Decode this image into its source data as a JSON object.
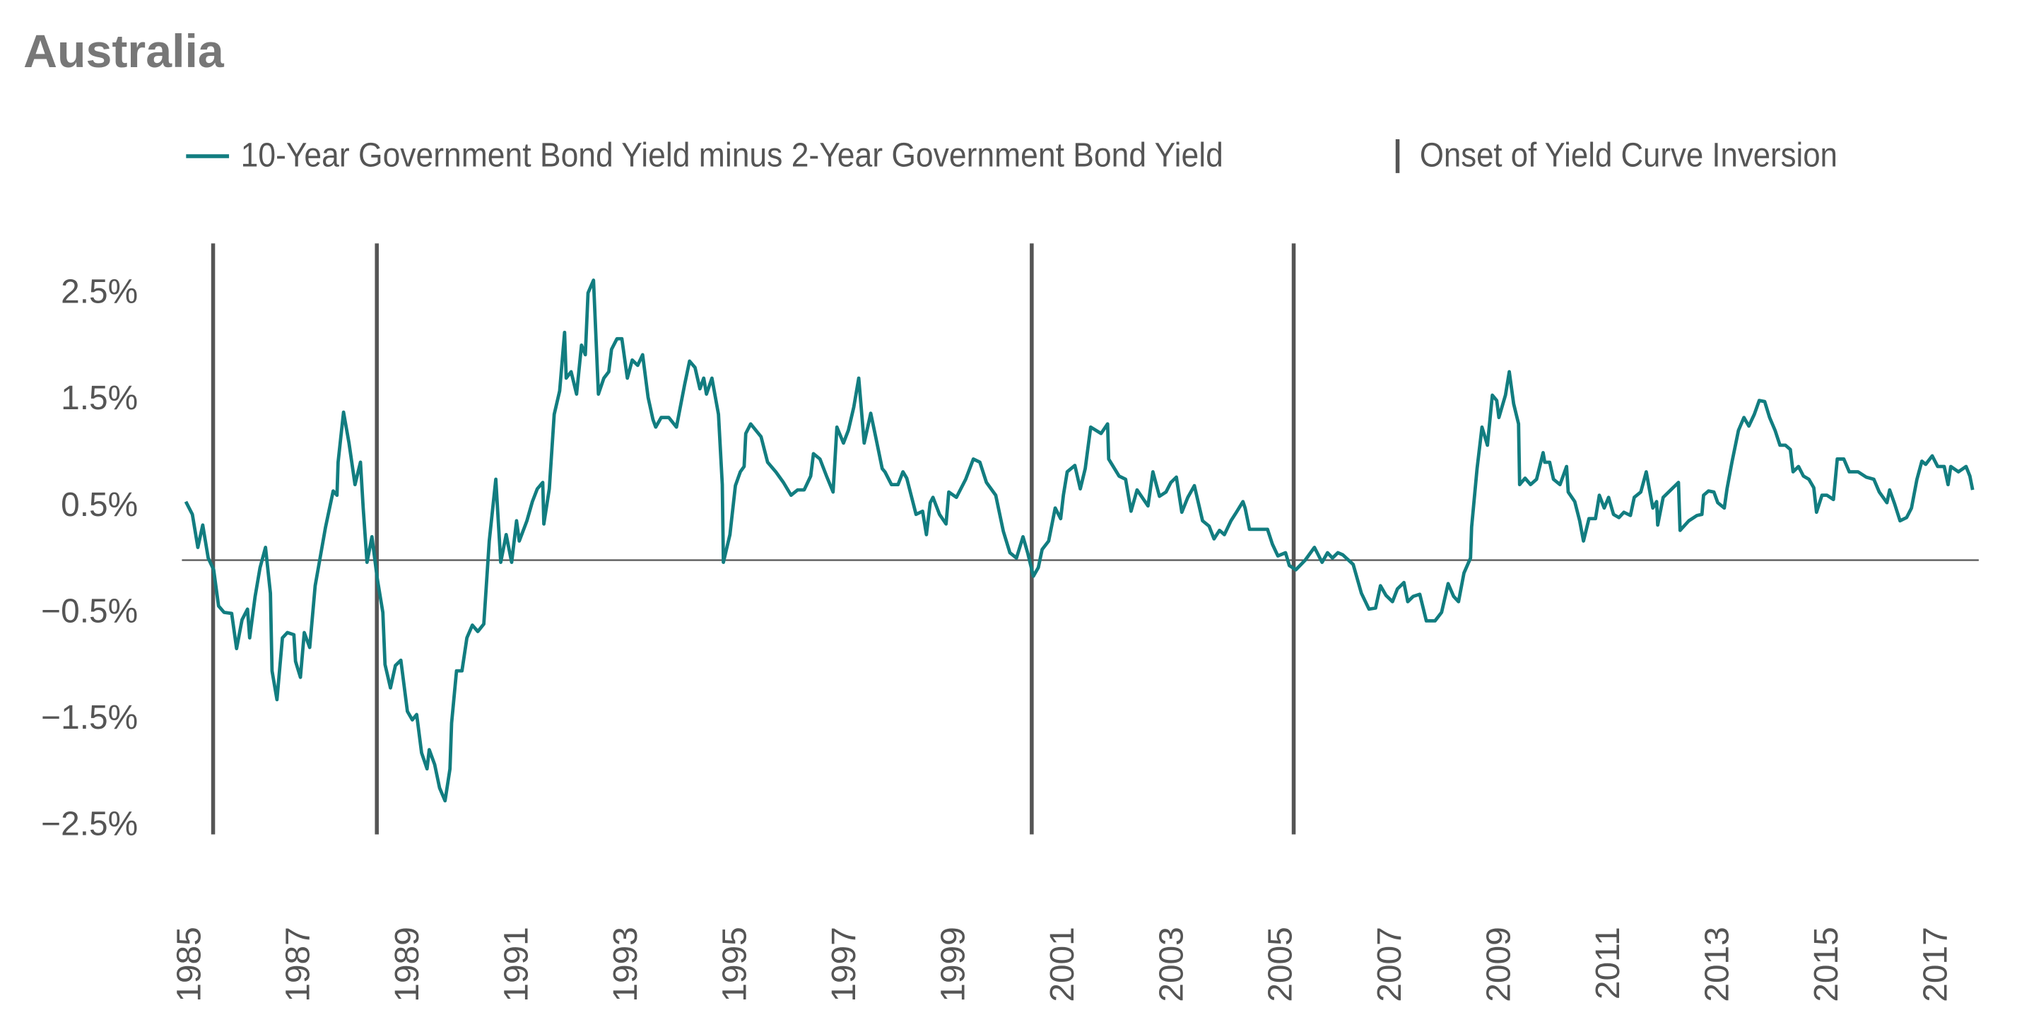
{
  "chart_data": {
    "type": "line",
    "title": "Australia",
    "x": [
      1984.9,
      1985.02,
      1985.12,
      1985.21,
      1985.31,
      1985.41,
      1985.5,
      1985.6,
      1985.74,
      1985.83,
      1985.93,
      1986.03,
      1986.07,
      1986.17,
      1986.26,
      1986.36,
      1986.45,
      1986.48,
      1986.57,
      1986.67,
      1986.76,
      1986.88,
      1986.91,
      1987.0,
      1987.07,
      1987.17,
      1987.27,
      1987.36,
      1987.46,
      1987.6,
      1987.67,
      1987.69,
      1987.79,
      1987.89,
      1988.0,
      1988.1,
      1988.15,
      1988.22,
      1988.31,
      1988.41,
      1988.51,
      1988.55,
      1988.65,
      1988.74,
      1988.84,
      1988.96,
      1989.05,
      1989.13,
      1989.22,
      1989.32,
      1989.36,
      1989.46,
      1989.55,
      1989.65,
      1989.74,
      1989.77,
      1989.86,
      1989.96,
      1990.05,
      1990.15,
      1990.25,
      1990.36,
      1990.46,
      1990.58,
      1990.67,
      1990.77,
      1990.87,
      1990.96,
      1991.01,
      1991.15,
      1991.25,
      1991.34,
      1991.44,
      1991.46,
      1991.56,
      1991.65,
      1991.75,
      1991.84,
      1991.87,
      1991.96,
      1992.06,
      1992.15,
      1992.22,
      1992.27,
      1992.37,
      1992.46,
      1992.56,
      1992.65,
      1992.7,
      1992.8,
      1992.89,
      1992.99,
      1993.08,
      1993.18,
      1993.27,
      1993.37,
      1993.46,
      1993.51,
      1993.61,
      1993.75,
      1993.89,
      1994.04,
      1994.13,
      1994.23,
      1994.32,
      1994.39,
      1994.44,
      1994.54,
      1994.66,
      1994.73,
      1994.75,
      1994.87,
      1994.97,
      1995.06,
      1995.13,
      1995.16,
      1995.25,
      1995.44,
      1995.56,
      1995.71,
      1995.85,
      1995.99,
      1996.11,
      1996.23,
      1996.35,
      1996.4,
      1996.52,
      1996.64,
      1996.76,
      1996.83,
      1996.95,
      1997.04,
      1997.14,
      1997.23,
      1997.33,
      1997.45,
      1997.54,
      1997.66,
      1997.71,
      1997.83,
      1997.95,
      1998.04,
      1998.11,
      1998.28,
      1998.4,
      1998.47,
      1998.54,
      1998.59,
      1998.71,
      1998.83,
      1998.88,
      1999.02,
      1999.19,
      1999.33,
      1999.45,
      1999.57,
      1999.74,
      1999.88,
      2000.0,
      2000.12,
      2000.24,
      2000.33,
      2000.43,
      2000.52,
      2000.59,
      2000.71,
      2000.83,
      2000.93,
      2000.98,
      2001.05,
      2001.19,
      2001.29,
      2001.38,
      2001.48,
      2001.67,
      2001.79,
      2001.81,
      2002.0,
      2002.12,
      2002.22,
      2002.33,
      2002.53,
      2002.62,
      2002.74,
      2002.86,
      2002.95,
      2003.05,
      2003.15,
      2003.26,
      2003.38,
      2003.53,
      2003.65,
      2003.74,
      2003.84,
      2003.93,
      2004.05,
      2004.15,
      2004.27,
      2004.31,
      2004.39,
      2004.48,
      2004.62,
      2004.72,
      2004.81,
      2004.91,
      2005.05,
      2005.12,
      2005.24,
      2005.41,
      2005.58,
      2005.72,
      2005.82,
      2005.91,
      2006.01,
      2006.1,
      2006.29,
      2006.44,
      2006.58,
      2006.7,
      2006.79,
      2006.89,
      2007.01,
      2007.1,
      2007.22,
      2007.29,
      2007.39,
      2007.51,
      2007.63,
      2007.79,
      2007.91,
      2008.03,
      2008.13,
      2008.22,
      2008.32,
      2008.44,
      2008.46,
      2008.56,
      2008.65,
      2008.75,
      2008.84,
      2008.92,
      2008.96,
      2009.08,
      2009.15,
      2009.23,
      2009.32,
      2009.34,
      2009.44,
      2009.54,
      2009.65,
      2009.77,
      2009.8,
      2009.89,
      2009.96,
      2010.08,
      2010.2,
      2010.23,
      2010.35,
      2010.44,
      2010.51,
      2010.61,
      2010.73,
      2010.8,
      2010.89,
      2010.97,
      2011.06,
      2011.16,
      2011.25,
      2011.37,
      2011.44,
      2011.56,
      2011.66,
      2011.78,
      2011.85,
      2011.87,
      2011.97,
      2012.11,
      2012.25,
      2012.28,
      2012.44,
      2012.59,
      2012.68,
      2012.71,
      2012.8,
      2012.9,
      2012.97,
      2013.09,
      2013.14,
      2013.23,
      2013.35,
      2013.45,
      2013.54,
      2013.64,
      2013.73,
      2013.83,
      2013.92,
      2014.02,
      2014.11,
      2014.21,
      2014.3,
      2014.35,
      2014.45,
      2014.54,
      2014.64,
      2014.73,
      2014.78,
      2014.88,
      2014.97,
      2015.09,
      2015.16,
      2015.28,
      2015.38,
      2015.54,
      2015.69,
      2015.83,
      2015.93,
      2016.07,
      2016.12,
      2016.21,
      2016.31,
      2016.43,
      2016.52,
      2016.62,
      2016.71,
      2016.78,
      2016.9,
      2017.0,
      2017.12,
      2017.19,
      2017.24,
      2017.38,
      2017.52,
      2017.59,
      2017.64
    ],
    "series": [
      {
        "name": "10-Year Government Bond Yield minus 2-Year Government Bond Yield",
        "color": "#127d80",
        "values": [
          0.55,
          0.43,
          0.12,
          0.33,
          0.02,
          -0.09,
          -0.43,
          -0.49,
          -0.5,
          -0.83,
          -0.56,
          -0.46,
          -0.73,
          -0.34,
          -0.07,
          0.12,
          -0.31,
          -1.04,
          -1.31,
          -0.73,
          -0.68,
          -0.7,
          -0.95,
          -1.1,
          -0.68,
          -0.82,
          -0.24,
          0.02,
          0.31,
          0.65,
          0.61,
          0.92,
          1.39,
          1.1,
          0.71,
          0.92,
          0.49,
          -0.02,
          0.22,
          -0.18,
          -0.49,
          -0.98,
          -1.2,
          -0.99,
          -0.94,
          -1.42,
          -1.5,
          -1.45,
          -1.81,
          -1.96,
          -1.78,
          -1.92,
          -2.14,
          -2.26,
          -1.96,
          -1.53,
          -1.04,
          -1.04,
          -0.73,
          -0.61,
          -0.67,
          -0.6,
          0.18,
          0.76,
          -0.02,
          0.24,
          -0.02,
          0.37,
          0.18,
          0.37,
          0.55,
          0.67,
          0.73,
          0.34,
          0.67,
          1.37,
          1.59,
          2.14,
          1.71,
          1.77,
          1.56,
          2.02,
          1.93,
          2.51,
          2.63,
          1.56,
          1.71,
          1.77,
          1.98,
          2.08,
          2.08,
          1.71,
          1.88,
          1.83,
          1.93,
          1.53,
          1.32,
          1.25,
          1.34,
          1.34,
          1.25,
          1.65,
          1.87,
          1.81,
          1.61,
          1.71,
          1.56,
          1.71,
          1.37,
          0.71,
          -0.02,
          0.24,
          0.7,
          0.83,
          0.88,
          1.19,
          1.28,
          1.16,
          0.92,
          0.83,
          0.73,
          0.61,
          0.66,
          0.66,
          0.79,
          1.0,
          0.95,
          0.79,
          0.64,
          1.25,
          1.1,
          1.22,
          1.44,
          1.71,
          1.1,
          1.38,
          1.16,
          0.86,
          0.83,
          0.71,
          0.71,
          0.83,
          0.77,
          0.43,
          0.46,
          0.24,
          0.54,
          0.59,
          0.43,
          0.34,
          0.64,
          0.59,
          0.76,
          0.95,
          0.92,
          0.73,
          0.61,
          0.27,
          0.07,
          0.02,
          0.22,
          0.06,
          -0.15,
          -0.07,
          0.1,
          0.18,
          0.49,
          0.39,
          0.61,
          0.83,
          0.89,
          0.67,
          0.86,
          1.25,
          1.19,
          1.28,
          0.95,
          0.79,
          0.76,
          0.46,
          0.66,
          0.51,
          0.83,
          0.6,
          0.64,
          0.73,
          0.78,
          0.45,
          0.59,
          0.7,
          0.37,
          0.32,
          0.2,
          0.28,
          0.24,
          0.37,
          0.45,
          0.55,
          0.49,
          0.29,
          0.29,
          0.29,
          0.29,
          0.15,
          0.04,
          0.07,
          -0.05,
          -0.09,
          0,
          0.12,
          -0.02,
          0.07,
          0.02,
          0.07,
          0.05,
          -0.04,
          -0.31,
          -0.46,
          -0.45,
          -0.24,
          -0.33,
          -0.39,
          -0.27,
          -0.21,
          -0.39,
          -0.34,
          -0.32,
          -0.57,
          -0.57,
          -0.49,
          -0.22,
          -0.34,
          -0.39,
          -0.12,
          0.02,
          0.31,
          0.86,
          1.25,
          1.08,
          1.55,
          1.5,
          1.34,
          1.55,
          1.77,
          1.47,
          1.28,
          0.71,
          0.77,
          0.71,
          0.76,
          1.01,
          0.92,
          0.92,
          0.76,
          0.71,
          0.88,
          0.64,
          0.55,
          0.37,
          0.18,
          0.39,
          0.39,
          0.61,
          0.49,
          0.59,
          0.43,
          0.4,
          0.45,
          0.42,
          0.59,
          0.64,
          0.83,
          0.49,
          0.55,
          0.33,
          0.59,
          0.66,
          0.73,
          0.28,
          0.37,
          0.42,
          0.43,
          0.61,
          0.65,
          0.64,
          0.54,
          0.49,
          0.67,
          0.92,
          1.22,
          1.34,
          1.26,
          1.37,
          1.5,
          1.49,
          1.34,
          1.22,
          1.08,
          1.08,
          1.04,
          0.83,
          0.88,
          0.79,
          0.76,
          0.68,
          0.45,
          0.61,
          0.61,
          0.57,
          0.95,
          0.95,
          0.83,
          0.83,
          0.78,
          0.76,
          0.64,
          0.54,
          0.66,
          0.53,
          0.37,
          0.4,
          0.49,
          0.76,
          0.93,
          0.9,
          0.98,
          0.88,
          0.88,
          0.71,
          0.88,
          0.83,
          0.88,
          0.79,
          0.66
        ]
      }
    ],
    "inversions": {
      "name": "Onset of Yield Curve Inversion",
      "color": "#555555",
      "x": [
        1985.4,
        1988.4,
        2000.4,
        2005.2
      ]
    },
    "xlim": [
      1984.9,
      2017.8
    ],
    "xticks": [
      1985,
      1987,
      1989,
      1991,
      1993,
      1995,
      1997,
      1999,
      2001,
      2003,
      2005,
      2007,
      2009,
      2011,
      2013,
      2015,
      2017
    ],
    "ylim": [
      -2.6,
      3.0
    ],
    "yticks": [
      {
        "value": 2.5,
        "label": "2.5%"
      },
      {
        "value": 1.5,
        "label": "1.5%"
      },
      {
        "value": 0.5,
        "label": "0.5%"
      },
      {
        "value": -0.5,
        "label": "−0.5%"
      },
      {
        "value": -1.5,
        "label": "−1.5%"
      },
      {
        "value": -2.5,
        "label": "−2.5%"
      }
    ],
    "grid": false
  }
}
